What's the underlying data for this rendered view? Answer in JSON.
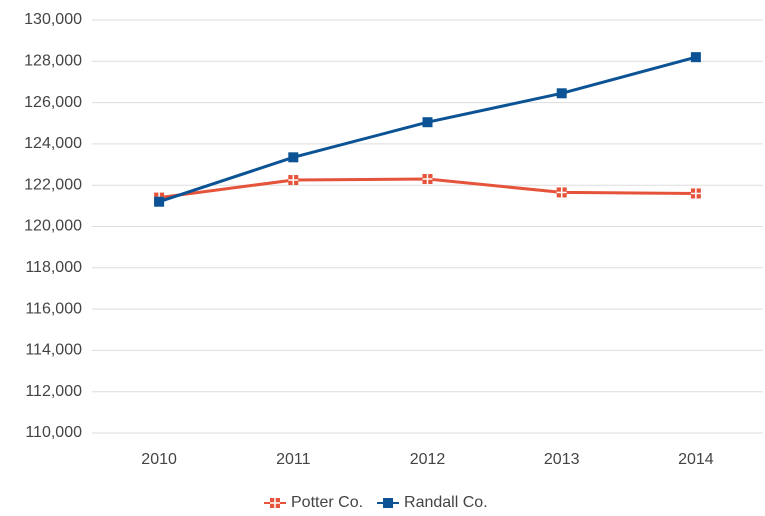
{
  "chart_data": {
    "type": "line",
    "categories": [
      "2010",
      "2011",
      "2012",
      "2013",
      "2014"
    ],
    "series": [
      {
        "name": "Potter Co.",
        "color": "#e5533a",
        "values": [
          121400,
          122250,
          122300,
          121650,
          121600
        ]
      },
      {
        "name": "Randall Co.",
        "color": "#0b5394",
        "values": [
          121200,
          123350,
          125050,
          126450,
          128200
        ]
      }
    ],
    "ylim": [
      110000,
      130000
    ],
    "yticks": [
      {
        "value": 110000,
        "label": "110,000"
      },
      {
        "value": 112000,
        "label": "112,000"
      },
      {
        "value": 114000,
        "label": "114,000"
      },
      {
        "value": 116000,
        "label": "116,000"
      },
      {
        "value": 118000,
        "label": "118,000"
      },
      {
        "value": 120000,
        "label": "120,000"
      },
      {
        "value": 122000,
        "label": "122,000"
      },
      {
        "value": 124000,
        "label": "124,000"
      },
      {
        "value": 126000,
        "label": "126,000"
      },
      {
        "value": 128000,
        "label": "128,000"
      },
      {
        "value": 130000,
        "label": "130,000"
      }
    ],
    "grid": true,
    "legend": "bottom"
  }
}
